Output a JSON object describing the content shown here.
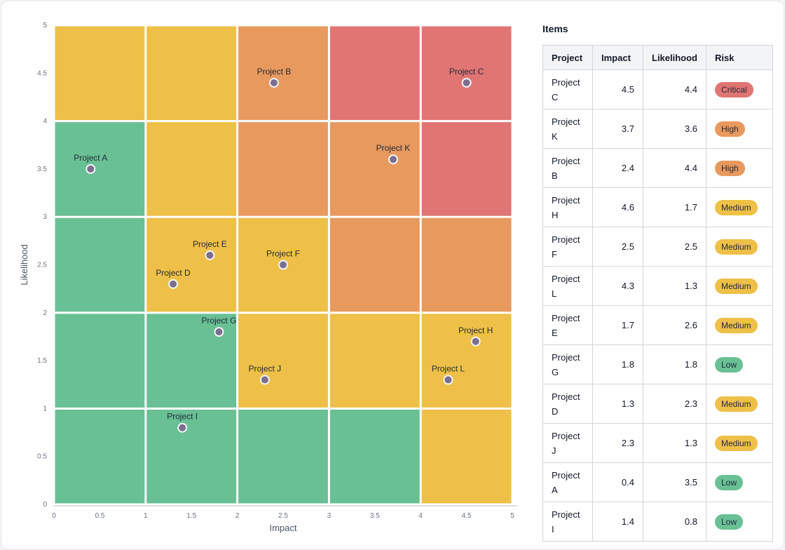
{
  "colors": {
    "Low": "#69c095",
    "Medium": "#eec048",
    "High": "#e8995e",
    "Critical": "#e07573",
    "point_fill": "#7a6f8f"
  },
  "chart_data": {
    "type": "scatter",
    "xlabel": "Impact",
    "ylabel": "Likelihood",
    "xlim": [
      0,
      5
    ],
    "ylim": [
      0,
      5
    ],
    "x_ticks": [
      0,
      0.5,
      1,
      1.5,
      2,
      2.5,
      3,
      3.5,
      4,
      4.5,
      5
    ],
    "y_ticks": [
      0,
      0.5,
      1,
      1.5,
      2,
      2.5,
      3,
      3.5,
      4,
      4.5,
      5
    ],
    "grid_levels": [
      [
        "Medium",
        "Medium",
        "High",
        "Critical",
        "Critical"
      ],
      [
        "Low",
        "Medium",
        "High",
        "High",
        "Critical"
      ],
      [
        "Low",
        "Medium",
        "Medium",
        "High",
        "High"
      ],
      [
        "Low",
        "Low",
        "Medium",
        "Medium",
        "Medium"
      ],
      [
        "Low",
        "Low",
        "Low",
        "Low",
        "Medium"
      ]
    ],
    "points": [
      {
        "label": "Project C",
        "x": 4.5,
        "y": 4.4,
        "risk": "Critical"
      },
      {
        "label": "Project K",
        "x": 3.7,
        "y": 3.6,
        "risk": "High"
      },
      {
        "label": "Project B",
        "x": 2.4,
        "y": 4.4,
        "risk": "High"
      },
      {
        "label": "Project H",
        "x": 4.6,
        "y": 1.7,
        "risk": "Medium"
      },
      {
        "label": "Project F",
        "x": 2.5,
        "y": 2.5,
        "risk": "Medium"
      },
      {
        "label": "Project L",
        "x": 4.3,
        "y": 1.3,
        "risk": "Medium"
      },
      {
        "label": "Project E",
        "x": 1.7,
        "y": 2.6,
        "risk": "Medium"
      },
      {
        "label": "Project G",
        "x": 1.8,
        "y": 1.8,
        "risk": "Low"
      },
      {
        "label": "Project D",
        "x": 1.3,
        "y": 2.3,
        "risk": "Medium"
      },
      {
        "label": "Project J",
        "x": 2.3,
        "y": 1.3,
        "risk": "Medium"
      },
      {
        "label": "Project A",
        "x": 0.4,
        "y": 3.5,
        "risk": "Low"
      },
      {
        "label": "Project I",
        "x": 1.4,
        "y": 0.8,
        "risk": "Low"
      }
    ]
  },
  "items_panel": {
    "title": "Items",
    "columns": [
      "Project",
      "Impact",
      "Likelihood",
      "Risk"
    ],
    "rows": [
      {
        "project": "Project C",
        "impact": "4.5",
        "likelihood": "4.4",
        "risk": "Critical"
      },
      {
        "project": "Project K",
        "impact": "3.7",
        "likelihood": "3.6",
        "risk": "High"
      },
      {
        "project": "Project B",
        "impact": "2.4",
        "likelihood": "4.4",
        "risk": "High"
      },
      {
        "project": "Project H",
        "impact": "4.6",
        "likelihood": "1.7",
        "risk": "Medium"
      },
      {
        "project": "Project F",
        "impact": "2.5",
        "likelihood": "2.5",
        "risk": "Medium"
      },
      {
        "project": "Project L",
        "impact": "4.3",
        "likelihood": "1.3",
        "risk": "Medium"
      },
      {
        "project": "Project E",
        "impact": "1.7",
        "likelihood": "2.6",
        "risk": "Medium"
      },
      {
        "project": "Project G",
        "impact": "1.8",
        "likelihood": "1.8",
        "risk": "Low"
      },
      {
        "project": "Project D",
        "impact": "1.3",
        "likelihood": "2.3",
        "risk": "Medium"
      },
      {
        "project": "Project J",
        "impact": "2.3",
        "likelihood": "1.3",
        "risk": "Medium"
      },
      {
        "project": "Project A",
        "impact": "0.4",
        "likelihood": "3.5",
        "risk": "Low"
      },
      {
        "project": "Project I",
        "impact": "1.4",
        "likelihood": "0.8",
        "risk": "Low"
      }
    ]
  }
}
